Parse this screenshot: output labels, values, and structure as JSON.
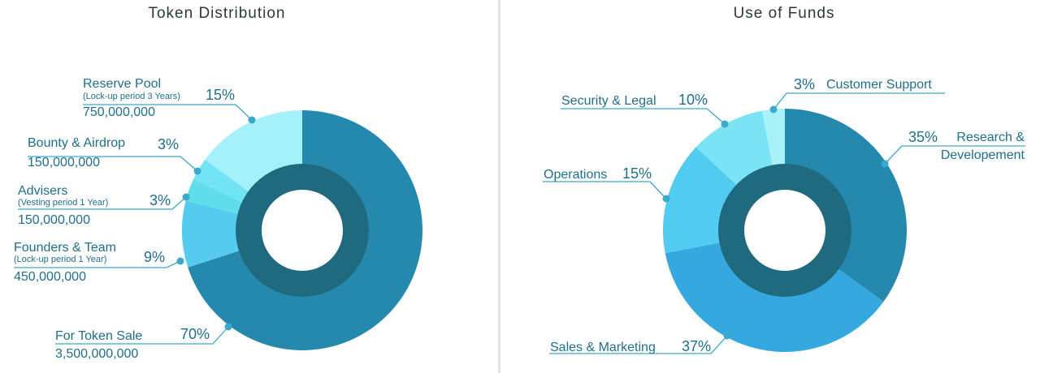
{
  "chart_data": [
    {
      "type": "pie",
      "title": "Token Distribution",
      "categories": [
        "For Token Sale",
        "Founders & Team",
        "Advisers",
        "Bounty & Airdrop",
        "Reserve Pool"
      ],
      "values": [
        70,
        9,
        3,
        3,
        15
      ],
      "value_labels": [
        "70%",
        "9%",
        "3%",
        "3%",
        "15%"
      ],
      "notes": [
        "",
        "(Lock-up period 1 Year)",
        "(Vesting period 1 Year)",
        "",
        "(Lock-up period 3 Years)"
      ],
      "amounts": [
        "3,500,000,000",
        "450,000,000",
        "150,000,000",
        "150,000,000",
        "750,000,000"
      ],
      "colors": [
        "#2589ae",
        "#55cbf0",
        "#5fdde8",
        "#72e3f5",
        "#a5f1f9"
      ]
    },
    {
      "type": "pie",
      "title": "Use of Funds",
      "categories": [
        "Research & Developement",
        "Sales & Marketing",
        "Operations",
        "Security & Legal",
        "Customer Support"
      ],
      "values": [
        35,
        37,
        15,
        10,
        3
      ],
      "value_labels": [
        "35%",
        "37%",
        "15%",
        "10%",
        "3%"
      ],
      "colors": [
        "#2589ae",
        "#35a9df",
        "#51cbef",
        "#7ae3f5",
        "#a8f1f9"
      ]
    }
  ],
  "styling": {
    "inner_ring_color": "#1f6a7f",
    "label_color": "#1f6f8a",
    "leader_color": "#3aa9cb"
  }
}
